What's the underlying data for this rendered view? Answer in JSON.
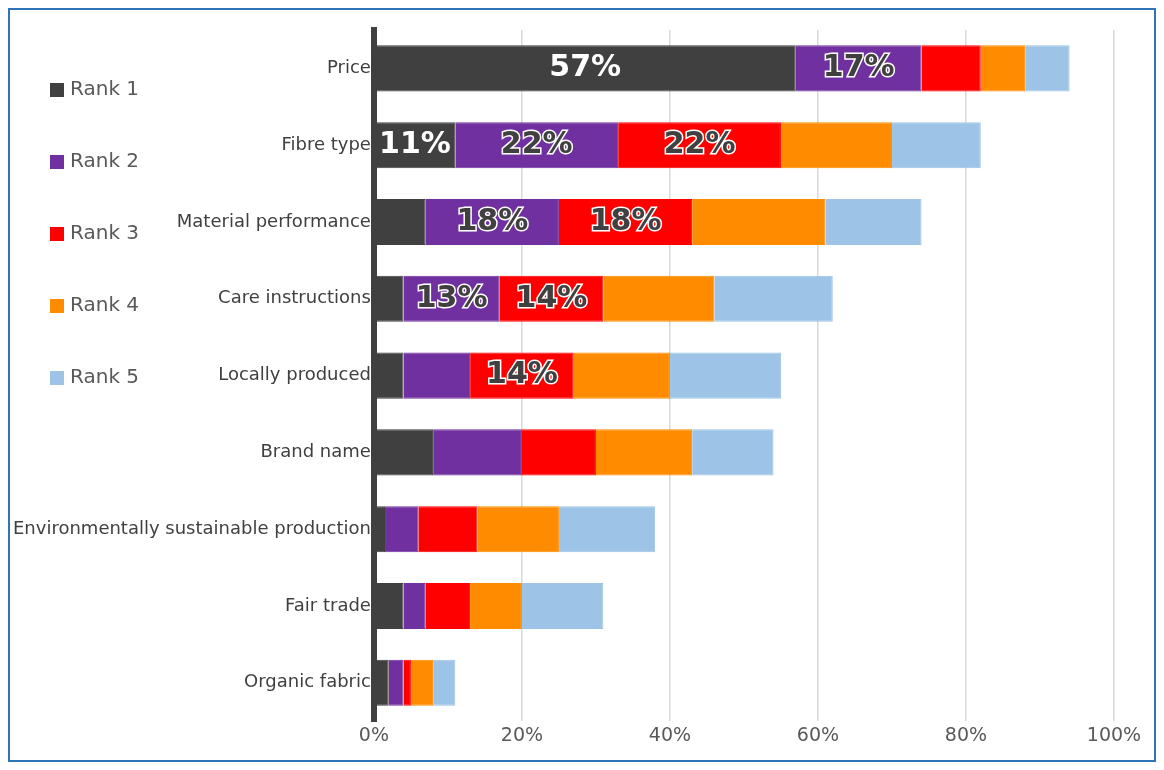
{
  "chart_data": {
    "type": "bar",
    "orientation": "horizontal",
    "stacked": true,
    "categories": [
      "Price",
      "Fibre type",
      "Material performance",
      "Care instructions",
      "Locally produced",
      "Brand name",
      "Environmentally sustainable production",
      "Fair trade",
      "Organic fabric"
    ],
    "series": [
      {
        "name": "Rank 1",
        "color": "#404040",
        "values": [
          57,
          11,
          7,
          4,
          4,
          8,
          1.5,
          4,
          2
        ],
        "value_labels": [
          "57%",
          "11%",
          null,
          null,
          null,
          null,
          null,
          null,
          null
        ]
      },
      {
        "name": "Rank 2",
        "color": "#7030a0",
        "values": [
          17,
          22,
          18,
          13,
          9,
          12,
          4.5,
          3,
          2
        ],
        "value_labels": [
          "17%",
          "22%",
          "18%",
          "13%",
          null,
          null,
          null,
          null,
          null
        ]
      },
      {
        "name": "Rank 3",
        "color": "#ff0000",
        "values": [
          8,
          22,
          18,
          14,
          14,
          10,
          8,
          6,
          1
        ],
        "value_labels": [
          null,
          "22%",
          "18%",
          "14%",
          "14%",
          null,
          null,
          null,
          null
        ]
      },
      {
        "name": "Rank 4",
        "color": "#ff8c00",
        "values": [
          6,
          15,
          18,
          15,
          13,
          13,
          11,
          7,
          3
        ]
      },
      {
        "name": "Rank 5",
        "color": "#9dc3e6",
        "values": [
          6,
          12,
          13,
          16,
          15,
          11,
          13,
          11,
          3
        ]
      }
    ],
    "xlim": [
      0,
      100
    ],
    "xticks": [
      {
        "value": 0,
        "label": "0%"
      },
      {
        "value": 20,
        "label": "20%"
      },
      {
        "value": 40,
        "label": "40%"
      },
      {
        "value": 60,
        "label": "60%"
      },
      {
        "value": 80,
        "label": "80%"
      },
      {
        "value": 100,
        "label": "100%"
      }
    ],
    "grid": "x",
    "legend": "left"
  }
}
